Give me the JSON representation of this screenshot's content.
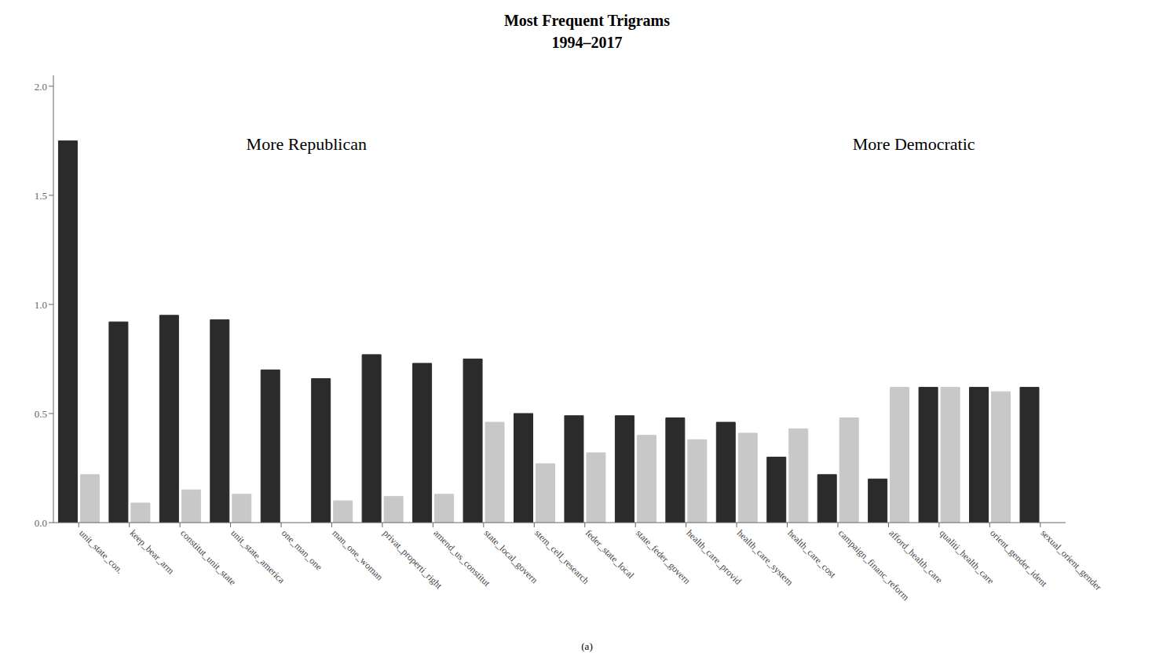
{
  "chart_data": {
    "type": "bar",
    "title": "Most Frequent Trigrams\n1994–2017",
    "subtitle": "(a)",
    "annotations": [
      "More Republican",
      "More Democratic"
    ],
    "categories": [
      "unit_state_con.",
      "keep_bear_arm",
      "constitut_unit_state",
      "unit_state_america",
      "one_man_one",
      "man_one_woman",
      "privat_properti_right",
      "amend_us_constitut",
      "state_local_govern",
      "stem_cell_research",
      "feder_state_local",
      "state_feder_govern",
      "health_care_provid",
      "health_care_system",
      "health_care_cost",
      "campaign_financ_reform",
      "afford_health_care",
      "qualiti_health_care",
      "orient_gender_ident",
      "sexual_orient_gender"
    ],
    "series": [
      {
        "color": "#2b2b2b",
        "values": [
          1.75,
          0.92,
          0.95,
          0.93,
          0.7,
          0.66,
          0.77,
          0.73,
          0.75,
          0.5,
          0.49,
          0.49,
          0.48,
          0.46,
          0.3,
          0.22,
          0.2,
          0.62,
          0.62,
          0.62
        ]
      },
      {
        "color": "#c8c8c8",
        "values": [
          0.22,
          0.09,
          0.15,
          0.13,
          0.0,
          0.1,
          0.12,
          0.13,
          0.46,
          0.27,
          0.32,
          0.4,
          0.38,
          0.41,
          0.43,
          0.48,
          0.62,
          0.62,
          0.6,
          0.0
        ]
      }
    ],
    "ylim": [
      0.0,
      2.05
    ],
    "yticks": [
      {
        "value": 0,
        "label": "0.0"
      },
      0.5,
      {
        "value": 1,
        "label": "1.0"
      },
      1.5,
      {
        "value": 2,
        "label": "2.0"
      }
    ],
    "grid": false
  }
}
